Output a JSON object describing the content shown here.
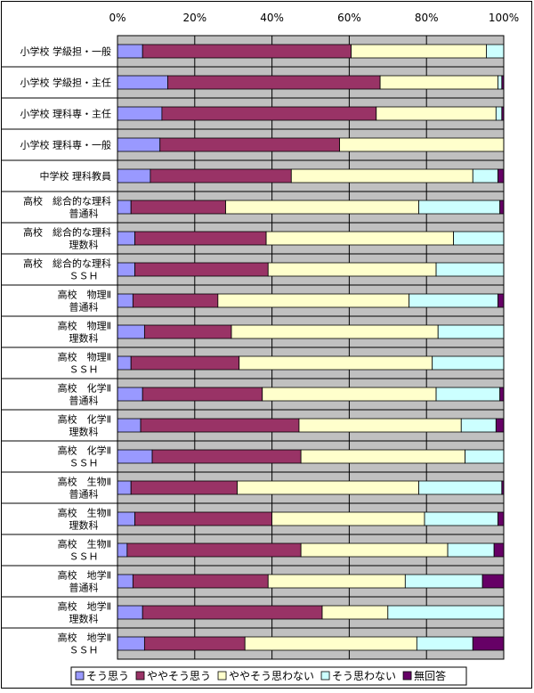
{
  "chart_data": {
    "type": "bar",
    "orientation": "horizontal",
    "stacked": "percent",
    "x_ticks": [
      "0%",
      "20%",
      "40%",
      "60%",
      "80%",
      "100%"
    ],
    "xlim": [
      0,
      100
    ],
    "grid": true,
    "legend_position": "bottom",
    "categories": [
      [
        "小学校 学級担・一般"
      ],
      [
        "小学校 学級担・主任"
      ],
      [
        "小学校 理科専・主任"
      ],
      [
        "小学校 理科専・一般"
      ],
      [
        "中学校 理科教員"
      ],
      [
        "高校　総合的な理科",
        "普通科"
      ],
      [
        "高校　総合的な理科",
        "理数科"
      ],
      [
        "高校　総合的な理科",
        "ＳＳＨ"
      ],
      [
        "高校　物理Ⅱ",
        "普通科"
      ],
      [
        "高校　物理Ⅱ",
        "理数科"
      ],
      [
        "高校　物理Ⅱ",
        "ＳＳＨ"
      ],
      [
        "高校　化学Ⅱ",
        "普通科"
      ],
      [
        "高校　化学Ⅱ",
        "理数科"
      ],
      [
        "高校　化学Ⅱ",
        "ＳＳＨ"
      ],
      [
        "高校　生物Ⅱ",
        "普通科"
      ],
      [
        "高校　生物Ⅱ",
        "理数科"
      ],
      [
        "高校　生物Ⅱ",
        "ＳＳＨ"
      ],
      [
        "高校　地学Ⅱ",
        "普通科"
      ],
      [
        "高校　地学Ⅱ",
        "理数科"
      ],
      [
        "高校　地学Ⅱ",
        "ＳＳＨ"
      ]
    ],
    "series": [
      {
        "name": "そう思う",
        "color": "#9999ff",
        "values": [
          6.5,
          13.0,
          11.5,
          11.0,
          8.5,
          3.5,
          4.5,
          4.5,
          4.0,
          7.0,
          3.5,
          6.5,
          6.0,
          9.0,
          3.5,
          4.5,
          2.5,
          4.0,
          6.5,
          7.0
        ]
      },
      {
        "name": "ややそう思う",
        "color": "#993366",
        "values": [
          54.0,
          55.0,
          55.5,
          46.5,
          36.5,
          24.5,
          34.0,
          34.5,
          22.0,
          22.5,
          28.0,
          31.0,
          41.0,
          38.5,
          27.5,
          35.5,
          45.0,
          35.0,
          46.5,
          26.0
        ]
      },
      {
        "name": "ややそう思わない",
        "color": "#ffffcc",
        "values": [
          35.0,
          30.5,
          31.0,
          42.5,
          47.0,
          50.0,
          48.5,
          43.5,
          49.5,
          53.5,
          50.0,
          45.0,
          42.0,
          42.5,
          47.0,
          39.5,
          38.0,
          35.5,
          17.0,
          44.5
        ]
      },
      {
        "name": "そう思わない",
        "color": "#ccffff",
        "values": [
          4.5,
          1.0,
          1.5,
          0.0,
          6.5,
          21.0,
          13.0,
          17.5,
          23.0,
          17.0,
          18.5,
          16.5,
          9.0,
          10.0,
          21.5,
          19.0,
          12.0,
          20.0,
          30.0,
          14.5
        ]
      },
      {
        "name": "無回答",
        "color": "#660066",
        "values": [
          0.0,
          0.5,
          0.5,
          0.0,
          1.5,
          1.0,
          0.0,
          0.0,
          1.5,
          0.0,
          0.0,
          1.0,
          2.0,
          0.0,
          0.5,
          1.5,
          2.5,
          5.5,
          0.0,
          8.0
        ]
      }
    ]
  }
}
